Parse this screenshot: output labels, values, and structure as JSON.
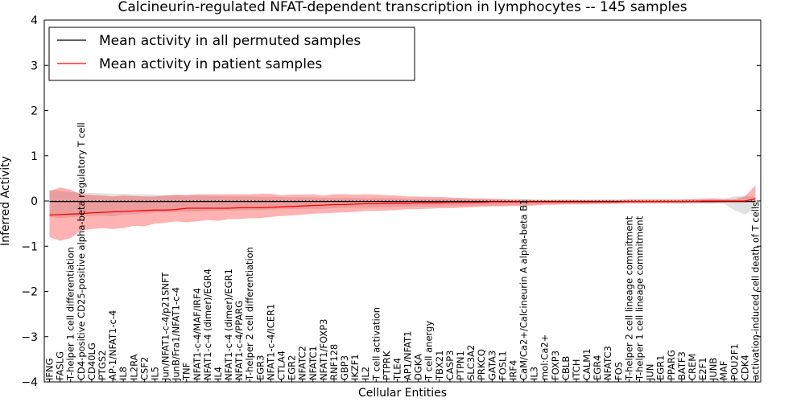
{
  "chart_data": {
    "type": "line",
    "title": "Calcineurin-regulated NFAT-dependent transcription in lymphocytes -- 145 samples",
    "xlabel": "Cellular Entities",
    "ylabel": "Inferred Activity",
    "ylim": [
      -4,
      4
    ],
    "yticks": [
      "4",
      "3",
      "2",
      "1",
      "0",
      "−1",
      "−2",
      "−3",
      "−4"
    ],
    "categories": [
      "IFNG",
      "FASLG",
      "T-helper 1 cell differentiation",
      "CD4-positive CD25-positive alpha-beta regulatory T cell",
      "CD40LG",
      "PTGS2",
      "AP-1/NFAT1-c-4",
      "IL8",
      "IL2RA",
      "CSF2",
      "IL5",
      "Jun/NFAT1-c-4/p21SNFT",
      "JunB/Fra1/NFAT1-c-4",
      "TNF",
      "NFAT1-c-4/MAF/IRF4",
      "NFAT1-c-4 (dimer)/EGR4",
      "IL4",
      "NFAT1-c-4 (dimer)/EGR1",
      "NFAT1-c-4/PPARG",
      "T-helper 2 cell differentiation",
      "EGR3",
      "NFAT1-c-4/ICER1",
      "CTLA4",
      "EGR2",
      "NFATC2",
      "NFATC1",
      "NFAT1/FOXP3",
      "RNF128",
      "GBP3",
      "IKZF1",
      "IL2",
      "T cell activation",
      "PTPRK",
      "TLE4",
      "AP1/NFAT1",
      "DGKA",
      "T cell anergy",
      "TBX21",
      "CASP3",
      "PTPN1",
      "SLC3A2",
      "PRKCQ",
      "GATA3",
      "FOSL1",
      "IRF4",
      "CaM/Ca2+/Calcineurin A alpha-beta B1",
      "IL3",
      "mol:Ca2+",
      "FOXP3",
      "CBLB",
      "ITCH",
      "CALM1",
      "EGR4",
      "NFATC3",
      "FOS",
      "T-helper 2 cell lineage commitment",
      "T-helper 1 cell lineage commitment",
      "JUN",
      "EGR1",
      "PPARG",
      "BATF3",
      "CREM",
      "E2F1",
      "JUNB",
      "MAF",
      "POU2F1",
      "CDK4",
      "activation-induced cell death of T cells"
    ],
    "series": [
      {
        "name": "Mean activity in all permuted samples",
        "color": "#000000",
        "values": [
          -0.01,
          -0.01,
          -0.01,
          -0.01,
          -0.01,
          -0.01,
          -0.01,
          -0.01,
          -0.01,
          -0.01,
          -0.01,
          -0.01,
          -0.01,
          -0.01,
          -0.01,
          -0.01,
          -0.01,
          -0.01,
          -0.01,
          -0.01,
          -0.01,
          -0.01,
          -0.01,
          -0.01,
          -0.01,
          -0.01,
          -0.01,
          -0.01,
          -0.01,
          -0.01,
          -0.01,
          -0.01,
          -0.01,
          -0.01,
          -0.01,
          -0.01,
          -0.01,
          -0.01,
          -0.01,
          -0.01,
          -0.01,
          -0.01,
          -0.01,
          -0.01,
          -0.01,
          -0.01,
          -0.01,
          -0.01,
          -0.01,
          -0.01,
          -0.01,
          -0.01,
          -0.01,
          -0.01,
          -0.01,
          -0.01,
          -0.01,
          -0.01,
          -0.01,
          -0.01,
          -0.01,
          -0.01,
          -0.01,
          -0.01,
          -0.01,
          -0.01,
          -0.01,
          -0.01
        ],
        "band_low": [
          -0.35,
          -0.38,
          -0.36,
          -0.34,
          -0.33,
          -0.32,
          -0.34,
          -0.3,
          -0.29,
          -0.27,
          -0.25,
          -0.25,
          -0.24,
          -0.24,
          -0.23,
          -0.22,
          -0.22,
          -0.21,
          -0.21,
          -0.2,
          -0.2,
          -0.19,
          -0.18,
          -0.18,
          -0.17,
          -0.17,
          -0.17,
          -0.16,
          -0.15,
          -0.15,
          -0.15,
          -0.14,
          -0.14,
          -0.13,
          -0.13,
          -0.12,
          -0.12,
          -0.12,
          -0.11,
          -0.11,
          -0.11,
          -0.1,
          -0.1,
          -0.1,
          -0.09,
          -0.09,
          -0.08,
          -0.08,
          -0.08,
          -0.08,
          -0.07,
          -0.07,
          -0.07,
          -0.07,
          -0.07,
          -0.06,
          -0.06,
          -0.06,
          -0.06,
          -0.06,
          -0.06,
          -0.06,
          -0.06,
          -0.06,
          -0.06,
          -0.2,
          -0.3,
          -0.15
        ],
        "band_high": [
          0.25,
          0.22,
          0.2,
          0.18,
          0.18,
          0.17,
          0.16,
          0.16,
          0.15,
          0.15,
          0.14,
          0.13,
          0.13,
          0.12,
          0.12,
          0.11,
          0.11,
          0.1,
          0.1,
          0.1,
          0.09,
          0.09,
          0.09,
          0.08,
          0.08,
          0.08,
          0.07,
          0.07,
          0.07,
          0.07,
          0.06,
          0.06,
          0.06,
          0.06,
          0.05,
          0.05,
          0.05,
          0.05,
          0.05,
          0.05,
          0.04,
          0.04,
          0.04,
          0.04,
          0.04,
          0.04,
          0.04,
          0.04,
          0.04,
          0.04,
          0.04,
          0.04,
          0.04,
          0.04,
          0.04,
          0.04,
          0.04,
          0.04,
          0.04,
          0.04,
          0.04,
          0.04,
          0.04,
          0.04,
          0.05,
          0.1,
          0.12,
          0.08
        ]
      },
      {
        "name": "Mean activity in patient samples",
        "color": "#ff0000",
        "values": [
          -0.31,
          -0.3,
          -0.29,
          -0.28,
          -0.26,
          -0.25,
          -0.24,
          -0.23,
          -0.22,
          -0.21,
          -0.2,
          -0.2,
          -0.19,
          -0.16,
          -0.16,
          -0.16,
          -0.16,
          -0.16,
          -0.15,
          -0.15,
          -0.15,
          -0.14,
          -0.13,
          -0.12,
          -0.11,
          -0.1,
          -0.09,
          -0.08,
          -0.08,
          -0.07,
          -0.06,
          -0.06,
          -0.05,
          -0.05,
          -0.05,
          -0.04,
          -0.04,
          -0.04,
          -0.03,
          -0.03,
          -0.03,
          -0.03,
          -0.02,
          -0.02,
          -0.02,
          -0.02,
          -0.02,
          -0.02,
          -0.02,
          -0.02,
          -0.02,
          -0.02,
          -0.02,
          -0.02,
          -0.02,
          -0.01,
          -0.01,
          -0.01,
          -0.01,
          -0.01,
          -0.01,
          -0.01,
          0.0,
          0.0,
          0.0,
          0.0,
          0.0,
          0.05
        ],
        "band_low": [
          -0.8,
          -0.88,
          -0.82,
          -0.65,
          -0.62,
          -0.6,
          -0.62,
          -0.6,
          -0.55,
          -0.56,
          -0.5,
          -0.48,
          -0.45,
          -0.47,
          -0.45,
          -0.42,
          -0.44,
          -0.4,
          -0.4,
          -0.38,
          -0.38,
          -0.35,
          -0.33,
          -0.32,
          -0.3,
          -0.28,
          -0.27,
          -0.26,
          -0.25,
          -0.24,
          -0.22,
          -0.22,
          -0.21,
          -0.2,
          -0.18,
          -0.18,
          -0.17,
          -0.16,
          -0.16,
          -0.15,
          -0.14,
          -0.13,
          -0.12,
          -0.12,
          -0.11,
          -0.11,
          -0.1,
          -0.08,
          -0.08,
          -0.07,
          -0.07,
          -0.07,
          -0.06,
          -0.06,
          -0.05,
          -0.05,
          -0.05,
          -0.05,
          -0.05,
          -0.05,
          -0.05,
          -0.04,
          -0.04,
          -0.04,
          -0.03,
          -0.03,
          -0.03,
          -0.02
        ],
        "band_high": [
          0.22,
          0.3,
          0.25,
          0.15,
          0.13,
          0.12,
          0.1,
          0.12,
          0.11,
          0.1,
          0.1,
          0.12,
          0.14,
          0.13,
          0.15,
          0.15,
          0.15,
          0.15,
          0.15,
          0.15,
          0.16,
          0.16,
          0.13,
          0.14,
          0.14,
          0.15,
          0.12,
          0.15,
          0.15,
          0.14,
          0.15,
          0.14,
          0.13,
          0.12,
          0.1,
          0.1,
          0.09,
          0.09,
          0.08,
          0.07,
          0.06,
          0.06,
          0.05,
          0.04,
          0.03,
          0.03,
          0.02,
          0.02,
          0.02,
          0.02,
          0.02,
          0.02,
          0.02,
          0.02,
          0.02,
          0.03,
          0.03,
          0.03,
          0.03,
          0.03,
          0.03,
          0.04,
          0.05,
          0.06,
          0.04,
          0.04,
          0.1,
          0.35
        ]
      }
    ],
    "legend": {
      "location": "top-left"
    },
    "grid": false
  }
}
